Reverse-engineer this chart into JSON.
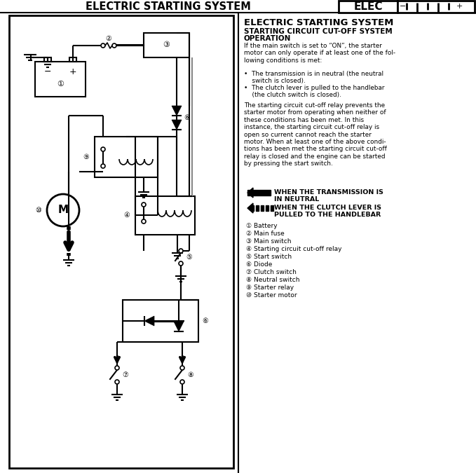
{
  "title": "ELECTRIC STARTING SYSTEM",
  "elec": "ELEC",
  "r_title": "ELECTRIC STARTING SYSTEM",
  "r_sub1": "STARTING CIRCUIT CUT-OFF SYSTEM",
  "r_sub2": "OPERATION",
  "r_body1": "If the main switch is set to “ON”, the starter\nmotor can only operate if at least one of the fol-\nlowing conditions is met:",
  "r_b1": "•  The transmission is in neutral (the neutral\n    switch is closed).",
  "r_b2": "•  The clutch lever is pulled to the handlebar\n    (the clutch switch is closed).",
  "r_body2": "The starting circuit cut-off relay prevents the\nstarter motor from operating when neither of\nthese conditions has been met. In this\ninstance, the starting circuit cut-off relay is\nopen so current cannot reach the starter\nmotor. When at least one of the above condi-\ntions has been met the starting circuit cut-off\nrelay is closed and the engine can be started\nby pressing the start switch.",
  "leg1": "WHEN THE TRANSMISSION IS\nIN NEUTRAL",
  "leg2": "WHEN THE CLUTCH LEVER IS\nPULLED TO THE HANDLEBAR",
  "comps": [
    "① Battery",
    "② Main fuse",
    "③ Main switch",
    "④ Starting circuit cut-off relay",
    "⑤ Start switch",
    "⑥ Diode",
    "⑦ Clutch switch",
    "⑧ Neutral switch",
    "⑨ Starter relay",
    "⑩ Starter motor"
  ]
}
